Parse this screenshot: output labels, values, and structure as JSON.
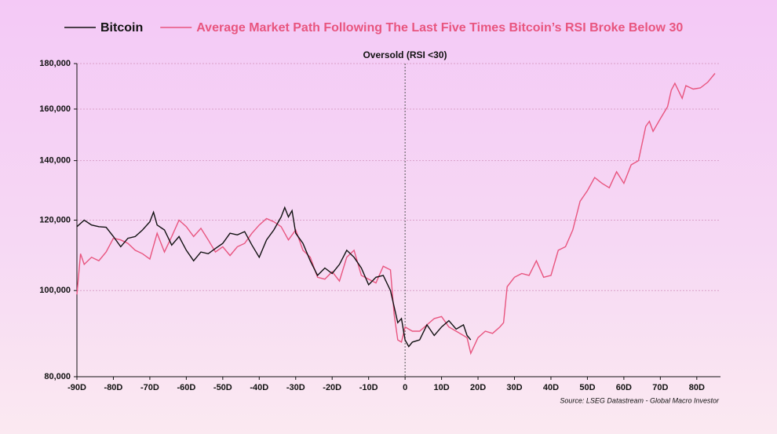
{
  "chart_data": {
    "type": "line",
    "annotation": "Oversold (RSI <30)",
    "source": "Source: LSEG Datastream - Global Macro Investor",
    "log_scale": true,
    "grid": true,
    "legend_position": "top",
    "xlim": [
      -90,
      86.5
    ],
    "xticks": [
      {
        "value": -90,
        "label": "-90D"
      },
      {
        "value": -80,
        "label": "-80D"
      },
      {
        "value": -70,
        "label": "-70D"
      },
      {
        "value": -60,
        "label": "-60D"
      },
      {
        "value": -50,
        "label": "-50D"
      },
      {
        "value": -40,
        "label": "-40D"
      },
      {
        "value": -30,
        "label": "-30D"
      },
      {
        "value": -20,
        "label": "-20D"
      },
      {
        "value": -10,
        "label": "-10D"
      },
      0,
      {
        "value": 10,
        "label": "10D"
      },
      {
        "value": 20,
        "label": "20D"
      },
      {
        "value": 30,
        "label": "30D"
      },
      {
        "value": 40,
        "label": "40D"
      },
      {
        "value": 50,
        "label": "50D"
      },
      {
        "value": 60,
        "label": "60D"
      },
      {
        "value": 70,
        "label": "70D"
      },
      {
        "value": 80,
        "label": "80D"
      }
    ],
    "ylim": [
      80000,
      180000
    ],
    "yticks": [
      {
        "value": 80000,
        "label": "80,000"
      },
      {
        "value": 100000,
        "label": "100,000"
      },
      {
        "value": 120000,
        "label": "120,000"
      },
      {
        "value": 140000,
        "label": "140,000"
      },
      {
        "value": 160000,
        "label": "160,000"
      },
      {
        "value": 180000,
        "label": "180,000"
      }
    ],
    "series": [
      {
        "name": "Bitcoin",
        "color": "#111111",
        "x": [
          -90,
          -88,
          -86,
          -84,
          -82,
          -80,
          -78,
          -76,
          -74,
          -72,
          -70,
          -69,
          -68,
          -66,
          -64,
          -62,
          -60,
          -58,
          -56,
          -54,
          -52,
          -50,
          -48,
          -46,
          -44,
          -42,
          -40,
          -38,
          -36,
          -34,
          -33,
          -32,
          -31,
          -30,
          -28,
          -26,
          -24,
          -22,
          -20,
          -18,
          -16,
          -14,
          -12,
          -10,
          -8,
          -6,
          -4,
          -2,
          -1,
          0,
          1,
          2,
          4,
          6,
          8,
          10,
          12,
          14,
          16,
          17,
          18
        ],
        "values": [
          118000,
          120000,
          118500,
          118000,
          117800,
          115000,
          112000,
          114500,
          115000,
          117000,
          119500,
          122500,
          118500,
          117000,
          112500,
          115000,
          111000,
          108000,
          110500,
          110000,
          111500,
          113000,
          116000,
          115500,
          116500,
          112500,
          109000,
          114000,
          117000,
          121000,
          124000,
          121000,
          123000,
          116000,
          113000,
          108000,
          104000,
          106000,
          104500,
          107000,
          111000,
          109000,
          106000,
          101500,
          103500,
          104000,
          100000,
          92000,
          93000,
          88000,
          86500,
          87500,
          88000,
          91500,
          89000,
          91000,
          92500,
          90500,
          91500,
          89000,
          88000
        ]
      },
      {
        "name": "Average Market Path Following The Last Five Times Bitcoin’s RSI Broke Below 30",
        "color": "#e8557f",
        "x": [
          -90,
          -89,
          -88,
          -86,
          -84,
          -82,
          -80,
          -78,
          -76,
          -74,
          -72,
          -70,
          -68,
          -66,
          -64,
          -62,
          -60,
          -58,
          -56,
          -54,
          -52,
          -50,
          -48,
          -46,
          -44,
          -42,
          -40,
          -38,
          -36,
          -34,
          -32,
          -30,
          -28,
          -26,
          -24,
          -22,
          -20,
          -18,
          -16,
          -14,
          -12,
          -10,
          -8,
          -6,
          -4,
          -3,
          -2,
          -1,
          0,
          2,
          4,
          6,
          8,
          10,
          12,
          14,
          16,
          17,
          18,
          20,
          22,
          24,
          26,
          27,
          28,
          30,
          32,
          34,
          36,
          38,
          40,
          42,
          44,
          46,
          48,
          50,
          52,
          54,
          56,
          58,
          60,
          62,
          64,
          66,
          67,
          68,
          70,
          72,
          73,
          74,
          76,
          77,
          79,
          81,
          83,
          85
        ],
        "values": [
          99000,
          110000,
          107000,
          109000,
          108000,
          110500,
          114500,
          114000,
          113000,
          111000,
          110000,
          108500,
          116000,
          110500,
          115000,
          120000,
          118000,
          115000,
          117500,
          114000,
          110500,
          112000,
          109500,
          112000,
          113000,
          116000,
          118500,
          120500,
          119500,
          118000,
          114000,
          117000,
          111000,
          109000,
          103500,
          103000,
          105000,
          102500,
          109000,
          111000,
          104000,
          103000,
          102000,
          106500,
          105500,
          94000,
          88000,
          87500,
          91000,
          90000,
          90000,
          91500,
          93000,
          93500,
          91000,
          90000,
          89000,
          88500,
          85000,
          88500,
          90000,
          89500,
          91000,
          92000,
          101000,
          103500,
          104500,
          104000,
          108000,
          103500,
          104000,
          111000,
          112000,
          117000,
          126000,
          129500,
          134000,
          132000,
          130500,
          136000,
          132000,
          138500,
          140000,
          153000,
          155000,
          151000,
          156000,
          161000,
          168000,
          171000,
          164500,
          170000,
          168500,
          169000,
          171500,
          175500
        ]
      }
    ]
  }
}
